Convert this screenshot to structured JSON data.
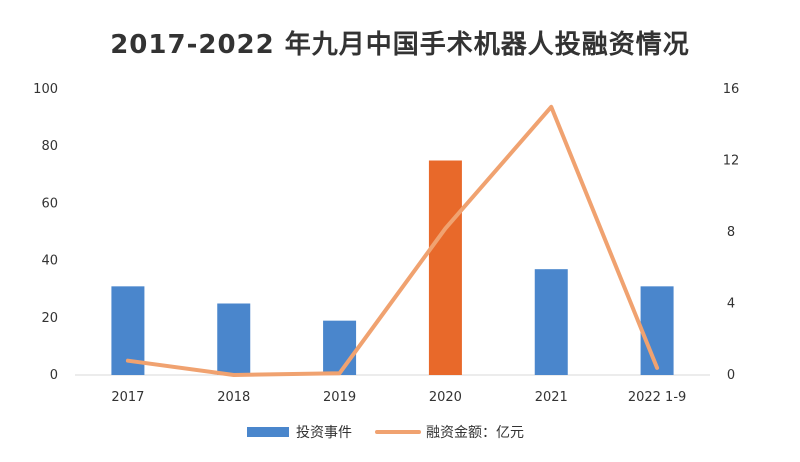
{
  "chart_data": {
    "type": "bar",
    "title": "2017-2022 年九月中国手术机器人投融资情况",
    "categories": [
      "2017",
      "2018",
      "2019",
      "2020",
      "2021",
      "2022  1-9"
    ],
    "series": [
      {
        "name": "投资事件",
        "chart_type": "bar",
        "axis": "left",
        "values": [
          31,
          25,
          19,
          75,
          37,
          31
        ],
        "highlight_index": 3
      },
      {
        "name": "融资金额：亿元",
        "chart_type": "line",
        "axis": "right",
        "values": [
          0.8,
          0.0,
          0.1,
          8.2,
          15.0,
          0.4
        ]
      }
    ],
    "y_left": {
      "range": [
        0,
        100
      ],
      "ticks": [
        "0",
        "20",
        "40",
        "60",
        "80",
        "100"
      ]
    },
    "y_right": {
      "range": [
        0,
        16
      ],
      "ticks": [
        "0",
        "4",
        "8",
        "12",
        "16"
      ]
    },
    "grid": false,
    "legend": "bottom-center"
  },
  "colors": {
    "bar": "#4a86cc",
    "bar_highlight": "#e8692a",
    "line": "#f0a270",
    "text": "#333333",
    "axis": "#d9d9d9"
  }
}
